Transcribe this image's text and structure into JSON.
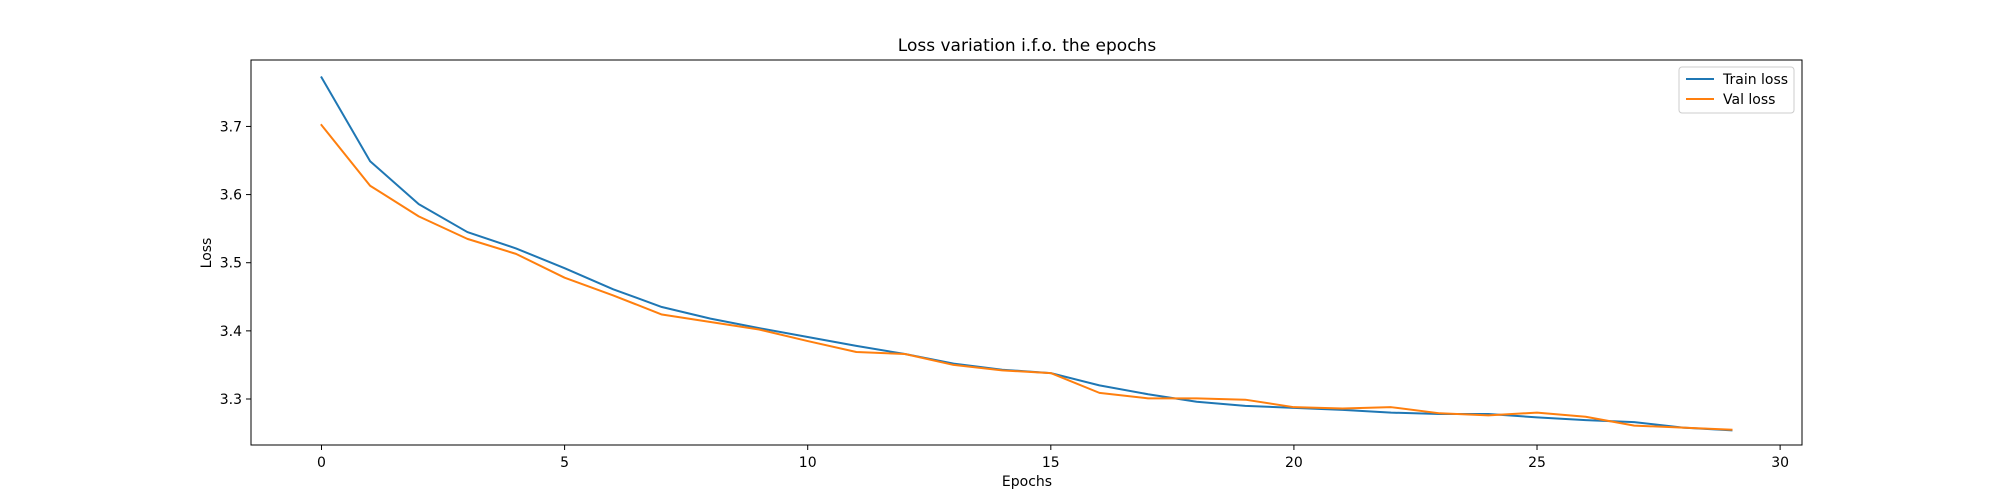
{
  "chart_data": {
    "type": "line",
    "title": "Loss variation i.f.o. the epochs",
    "xlabel": "Epochs",
    "ylabel": "Loss",
    "xlim": [
      -1.45,
      30.45
    ],
    "ylim": [
      3.2325,
      3.7975
    ],
    "xticks": [
      0,
      5,
      10,
      15,
      20,
      25,
      30
    ],
    "yticks": [
      3.3,
      3.4,
      3.5,
      3.6,
      3.7
    ],
    "grid": false,
    "legend_position": "top-right",
    "x": [
      0,
      1,
      2,
      3,
      4,
      5,
      6,
      7,
      8,
      9,
      10,
      11,
      12,
      13,
      14,
      15,
      16,
      17,
      18,
      19,
      20,
      21,
      22,
      23,
      24,
      25,
      26,
      27,
      28,
      29
    ],
    "series": [
      {
        "name": "Train loss",
        "color": "#1f77b4",
        "values": [
          3.772,
          3.649,
          3.586,
          3.545,
          3.521,
          3.492,
          3.461,
          3.435,
          3.418,
          3.404,
          3.391,
          3.378,
          3.366,
          3.352,
          3.343,
          3.338,
          3.32,
          3.307,
          3.296,
          3.29,
          3.287,
          3.284,
          3.28,
          3.278,
          3.278,
          3.273,
          3.269,
          3.266,
          3.258,
          3.254
        ]
      },
      {
        "name": "Val loss",
        "color": "#ff7f0e",
        "values": [
          3.702,
          3.613,
          3.568,
          3.535,
          3.513,
          3.478,
          3.452,
          3.424,
          3.413,
          3.402,
          3.385,
          3.369,
          3.366,
          3.35,
          3.342,
          3.338,
          3.309,
          3.301,
          3.301,
          3.299,
          3.288,
          3.286,
          3.288,
          3.279,
          3.276,
          3.28,
          3.274,
          3.261,
          3.258,
          3.255
        ]
      }
    ]
  }
}
